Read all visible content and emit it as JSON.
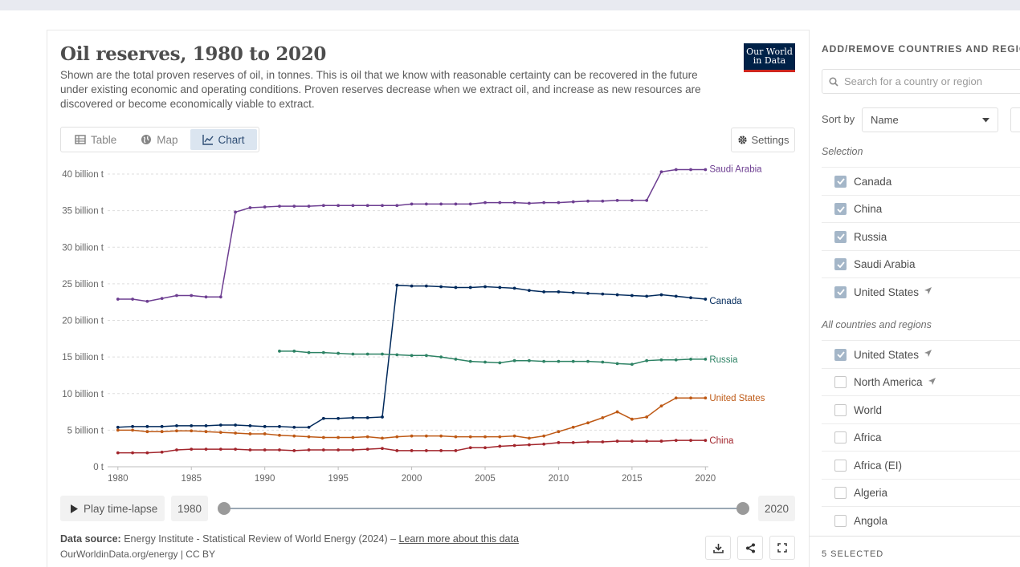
{
  "title": "Oil reserves, 1980 to 2020",
  "subtitle": "Shown are the total proven reserves of oil, in tonnes. This is oil that we know with reasonable certainty can be recovered in the future under existing economic and operating conditions. Proven reserves decrease when we extract oil, and increase as new resources are discovered or become economically viable to extract.",
  "logo": {
    "line1": "Our World",
    "line2": "in Data"
  },
  "tabs": [
    {
      "label": "Table",
      "icon": "table-icon"
    },
    {
      "label": "Map",
      "icon": "globe-icon"
    },
    {
      "label": "Chart",
      "icon": "line-chart-icon",
      "active": true
    }
  ],
  "settings_label": "Settings",
  "controls": {
    "play_label": "Play time-lapse",
    "start_year": "1980",
    "end_year": "2020",
    "slider_start": 0,
    "slider_end": 1
  },
  "source": {
    "prefix": "Data source:",
    "text": "Energy Institute - Statistical Review of World Energy (2024) –",
    "link": "Learn more about this data",
    "credit": "OurWorldinData.org/energy | CC BY"
  },
  "sidebar": {
    "heading": "ADD/REMOVE COUNTRIES AND REGIONS",
    "search_placeholder": "Search for a country or region",
    "sort_label": "Sort by",
    "sort_value": "Name",
    "selection_label": "Selection",
    "selection": [
      {
        "label": "Canada",
        "checked": true,
        "arrow": false
      },
      {
        "label": "China",
        "checked": true,
        "arrow": false
      },
      {
        "label": "Russia",
        "checked": true,
        "arrow": false
      },
      {
        "label": "Saudi Arabia",
        "checked": true,
        "arrow": false
      },
      {
        "label": "United States",
        "checked": true,
        "arrow": true
      }
    ],
    "all_label": "All countries and regions",
    "all": [
      {
        "label": "United States",
        "checked": true,
        "arrow": true
      },
      {
        "label": "North America",
        "checked": false,
        "arrow": true
      },
      {
        "label": "World",
        "checked": false,
        "arrow": false
      },
      {
        "label": "Africa",
        "checked": false,
        "arrow": false
      },
      {
        "label": "Africa (EI)",
        "checked": false,
        "arrow": false
      },
      {
        "label": "Algeria",
        "checked": false,
        "arrow": false
      },
      {
        "label": "Angola",
        "checked": false,
        "arrow": false
      }
    ],
    "selected_count": "5 SELECTED"
  },
  "chart_data": {
    "type": "line",
    "title": "Oil reserves, 1980 to 2020",
    "xlim": [
      1979.3,
      2020.2
    ],
    "ylim": [
      0,
      40000000000
    ],
    "x_ticks": [
      1980,
      1985,
      1990,
      1995,
      2000,
      2005,
      2010,
      2015,
      2020
    ],
    "y_ticks": [
      0,
      5000000000,
      10000000000,
      15000000000,
      20000000000,
      25000000000,
      30000000000,
      35000000000,
      40000000000
    ],
    "y_tick_labels": [
      "0 t",
      "5 billion t",
      "10 billion t",
      "15 billion t",
      "20 billion t",
      "25 billion t",
      "30 billion t",
      "35 billion t",
      "40 billion t"
    ],
    "grid": "horizontal dashed",
    "legend": "inline labels at right",
    "series": [
      {
        "name": "Saudi Arabia",
        "color": "#6d3e91",
        "start": 1980,
        "values": [
          22.9,
          22.9,
          22.6,
          23.0,
          23.4,
          23.4,
          23.2,
          23.2,
          34.8,
          35.4,
          35.5,
          35.6,
          35.6,
          35.6,
          35.7,
          35.7,
          35.7,
          35.7,
          35.7,
          35.7,
          35.9,
          35.9,
          35.9,
          35.9,
          35.9,
          36.1,
          36.1,
          36.1,
          36.0,
          36.1,
          36.1,
          36.2,
          36.3,
          36.3,
          36.4,
          36.4,
          36.4,
          40.3,
          40.6,
          40.6,
          40.6
        ]
      },
      {
        "name": "Canada",
        "color": "#00295b",
        "start": 1980,
        "values": [
          5.4,
          5.5,
          5.5,
          5.5,
          5.6,
          5.6,
          5.6,
          5.7,
          5.7,
          5.6,
          5.5,
          5.5,
          5.4,
          5.4,
          6.6,
          6.6,
          6.7,
          6.7,
          6.8,
          24.8,
          24.7,
          24.7,
          24.6,
          24.5,
          24.5,
          24.6,
          24.5,
          24.4,
          24.1,
          23.9,
          23.9,
          23.8,
          23.7,
          23.6,
          23.5,
          23.4,
          23.3,
          23.5,
          23.3,
          23.1,
          22.9
        ]
      },
      {
        "name": "Russia",
        "color": "#2d8264",
        "start": 1991,
        "values": [
          15.8,
          15.8,
          15.6,
          15.6,
          15.5,
          15.4,
          15.4,
          15.4,
          15.3,
          15.2,
          15.2,
          15.0,
          14.7,
          14.4,
          14.3,
          14.2,
          14.5,
          14.5,
          14.4,
          14.4,
          14.4,
          14.4,
          14.3,
          14.1,
          14.0,
          14.5,
          14.6,
          14.6,
          14.7,
          14.7
        ]
      },
      {
        "name": "United States",
        "color": "#be5915",
        "start": 1980,
        "values": [
          5.0,
          5.0,
          4.8,
          4.8,
          4.9,
          4.9,
          4.8,
          4.7,
          4.6,
          4.5,
          4.5,
          4.3,
          4.2,
          4.1,
          4.0,
          4.0,
          4.0,
          4.1,
          3.9,
          4.1,
          4.2,
          4.2,
          4.2,
          4.1,
          4.1,
          4.1,
          4.1,
          4.2,
          3.9,
          4.2,
          4.8,
          5.4,
          6.0,
          6.7,
          7.5,
          6.5,
          6.8,
          8.3,
          9.4,
          9.4,
          9.4
        ]
      },
      {
        "name": "China",
        "color": "#a2252c",
        "start": 1980,
        "values": [
          1.9,
          1.9,
          1.9,
          2.0,
          2.3,
          2.4,
          2.4,
          2.4,
          2.4,
          2.3,
          2.3,
          2.3,
          2.2,
          2.3,
          2.3,
          2.3,
          2.3,
          2.4,
          2.5,
          2.2,
          2.2,
          2.2,
          2.2,
          2.2,
          2.6,
          2.6,
          2.8,
          2.9,
          3.0,
          3.1,
          3.3,
          3.3,
          3.4,
          3.4,
          3.5,
          3.5,
          3.5,
          3.5,
          3.6,
          3.6,
          3.6
        ]
      }
    ],
    "value_unit_note": "values in billion tonnes"
  }
}
